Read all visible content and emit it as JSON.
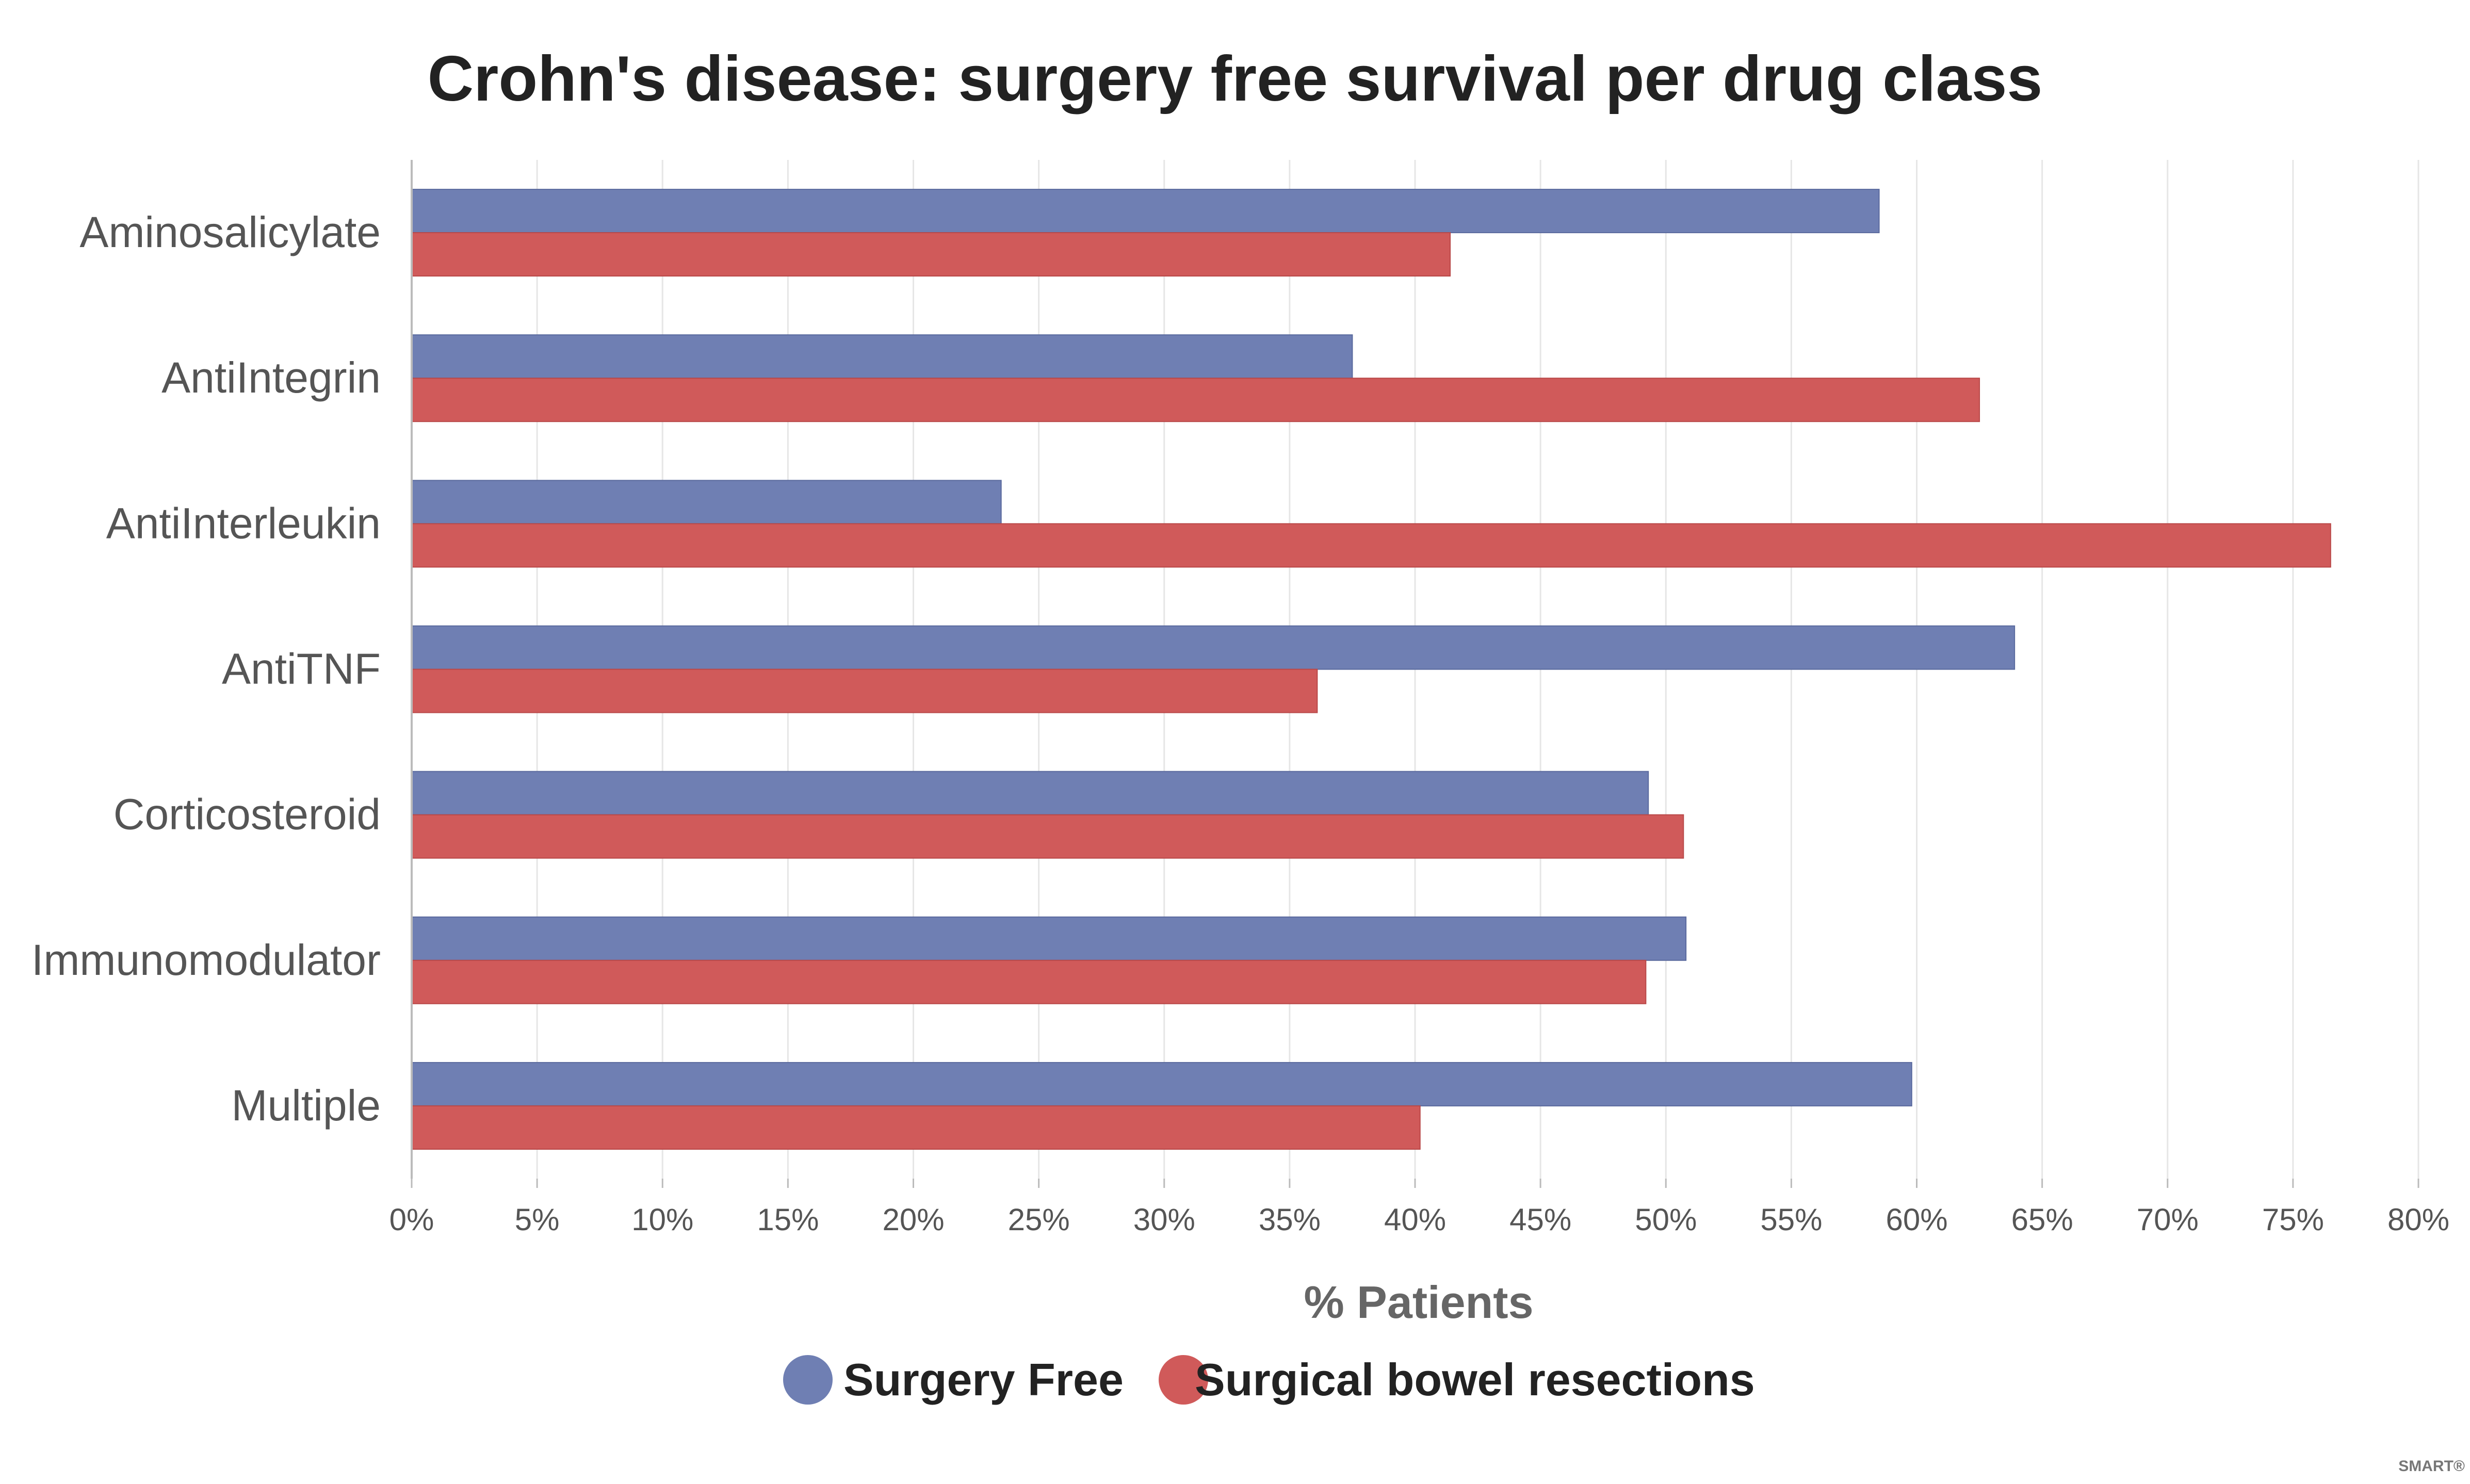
{
  "chart_data": {
    "type": "bar",
    "orientation": "horizontal",
    "title": "Crohn's disease: surgery free survival per drug class",
    "xlabel": "% Patients",
    "ylabel": "",
    "categories": [
      "Aminosalicylate",
      "AntiIntegrin",
      "AntiInterleukin",
      "AntiTNF",
      "Corticosteroid",
      "Immunomodulator",
      "Multiple"
    ],
    "series": [
      {
        "name": "Surgery Free",
        "color": "#6f7fb3",
        "values": [
          58.5,
          37.5,
          23.5,
          63.9,
          49.3,
          50.8,
          59.8
        ]
      },
      {
        "name": "Surgical bowel resections",
        "color": "#d05a5a",
        "values": [
          41.4,
          62.5,
          76.5,
          36.1,
          50.7,
          49.2,
          40.2
        ]
      }
    ],
    "xlim": [
      0,
      80
    ],
    "xticks": [
      0,
      5,
      10,
      15,
      20,
      25,
      30,
      35,
      40,
      45,
      50,
      55,
      60,
      65,
      70,
      75,
      80
    ],
    "tick_suffix": "%",
    "grid": true,
    "legend_position": "bottom-center"
  },
  "watermark": "SMART®"
}
